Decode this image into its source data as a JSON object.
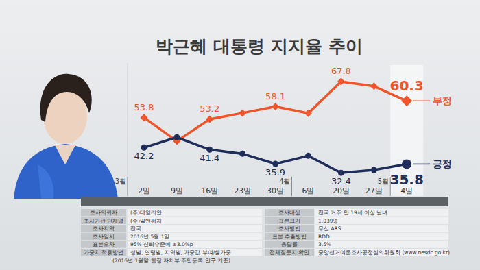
{
  "chart_data": {
    "type": "line",
    "title": "박근혜 대통령 지지율 추이",
    "categories": [
      "2일",
      "9일",
      "16일",
      "23일",
      "30일",
      "6일",
      "20일",
      "27일",
      "4일"
    ],
    "month_labels": [
      "3월",
      null,
      null,
      null,
      null,
      "4월",
      null,
      null,
      "5월"
    ],
    "series": [
      {
        "name": "부정",
        "color": "#f0542b",
        "marker": "diamond",
        "values": [
          53.8,
          44.7,
          53.2,
          55.6,
          58.1,
          55.5,
          67.8,
          66,
          60.3
        ],
        "value_labels": [
          "53.8",
          null,
          "53.2",
          null,
          "58.1",
          null,
          "67.8",
          null,
          "60.3"
        ]
      },
      {
        "name": "긍정",
        "color": "#1e2d5a",
        "marker": "circle",
        "values": [
          42.2,
          46.2,
          41.4,
          39.8,
          35.9,
          39,
          32.4,
          33.5,
          35.8
        ],
        "value_labels": [
          "42.2",
          null,
          "41.4",
          null,
          "35.9",
          null,
          "32.4",
          null,
          "35.8"
        ]
      }
    ],
    "ylim": [
      25,
      75
    ],
    "yticks": [],
    "tick_labels": "x",
    "data_labels": true,
    "grid": false
  },
  "survey_info": {
    "left": [
      {
        "label": "조사의뢰자",
        "value": "(주)데일리안"
      },
      {
        "label": "조사기관·단체명",
        "value": "(주)알앤써치"
      },
      {
        "label": "조사지역",
        "value": "전국"
      },
      {
        "label": "조사일시",
        "value": "2016년 5월 1일"
      },
      {
        "label": "표본오차",
        "value": "95% 신뢰수준에 ±3.0%p"
      },
      {
        "label": "가중치 적용방법",
        "value": "성별, 연령별, 지역별, 가중값 부여/셀가중"
      }
    ],
    "footnote": "(2016년 1월말 행정 자치부 주민등록 인구 기준)",
    "right": [
      {
        "label": "조사대상",
        "value": "전국 거주 만 19세 이상 남녀"
      },
      {
        "label": "표본크기",
        "value": "1,039명"
      },
      {
        "label": "조사방법",
        "value": "무선 ARS"
      },
      {
        "label": "표본 추출방법",
        "value": "RDD"
      },
      {
        "label": "응답률",
        "value": "3.5%"
      },
      {
        "label": "전체질문지 확인",
        "value": "중앙선거여론조사공정심의위원회 (www.nesdc.go.kr)"
      }
    ]
  }
}
